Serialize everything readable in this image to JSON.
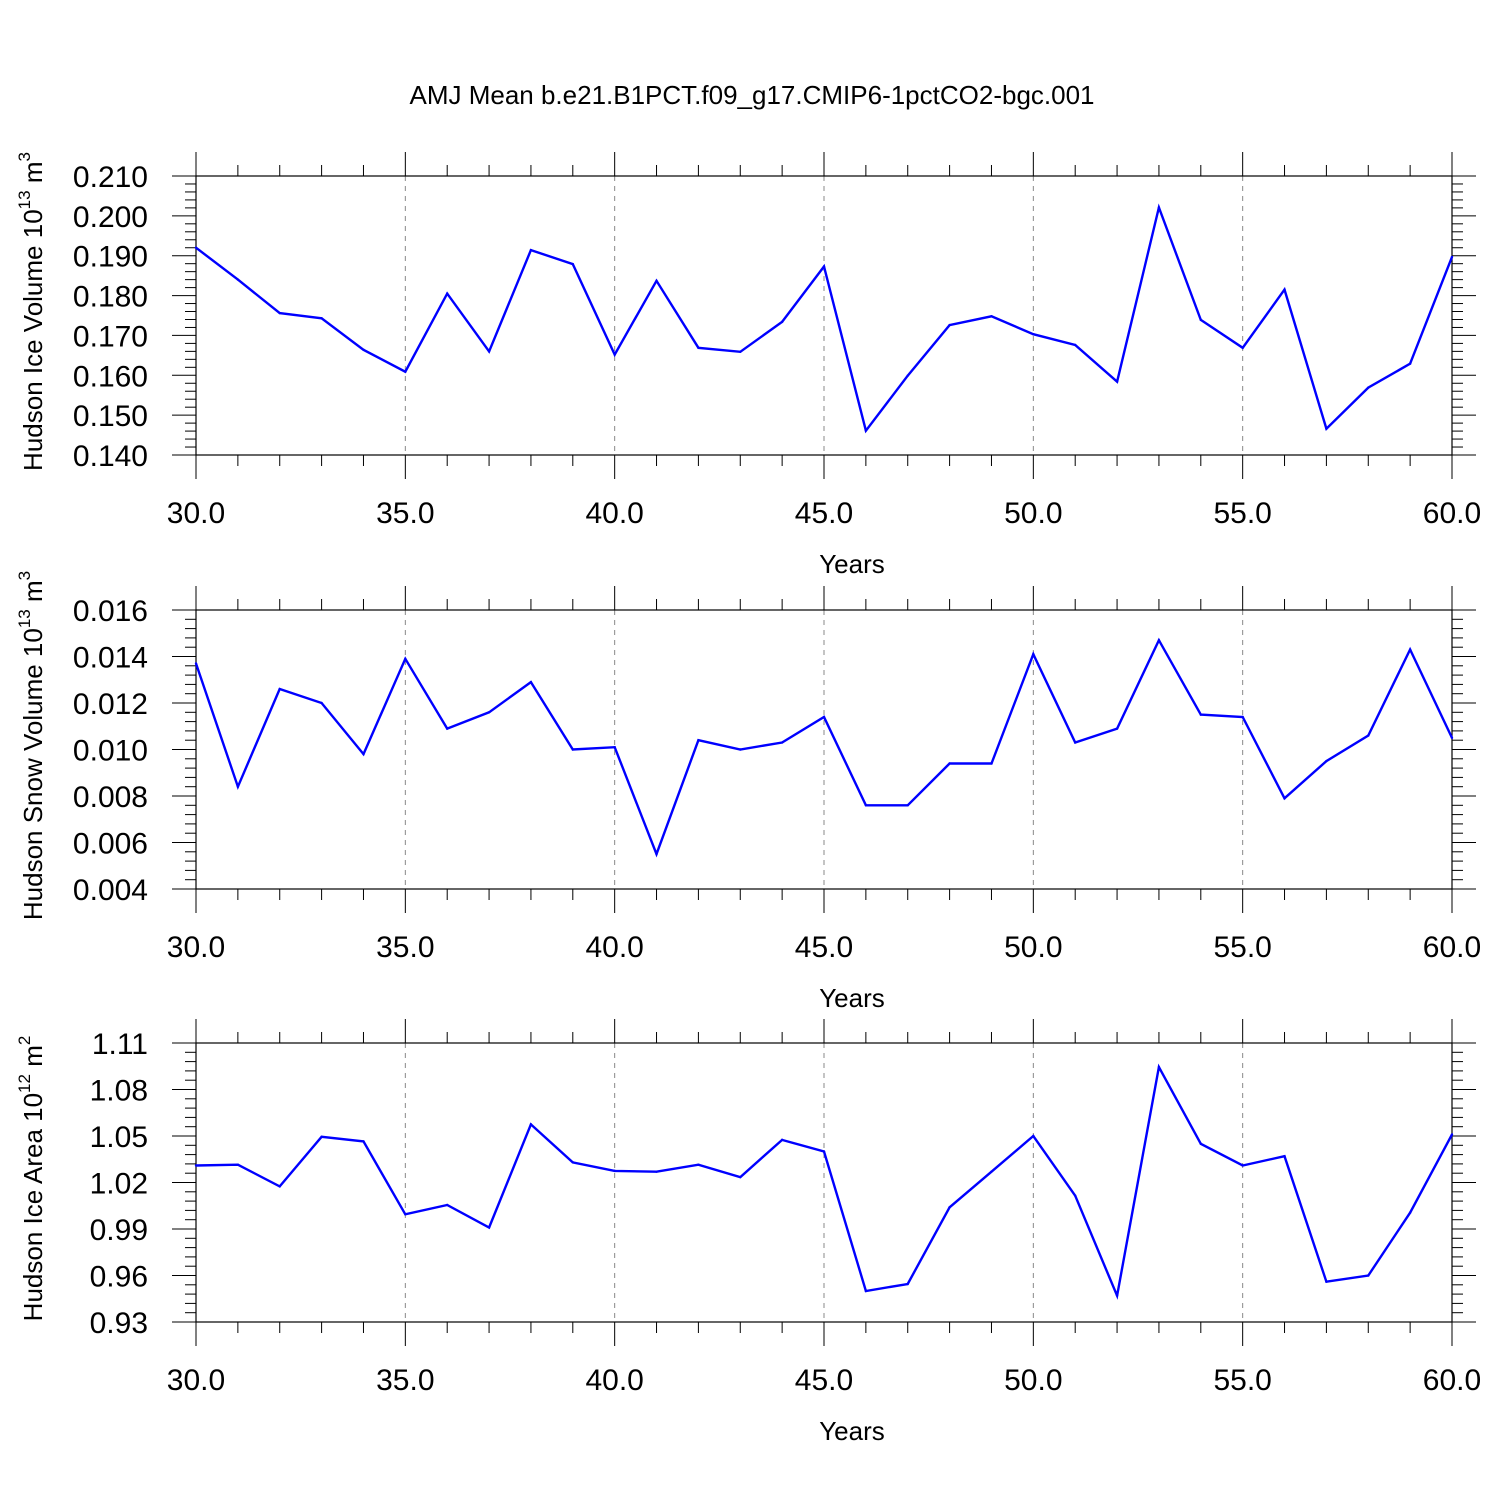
{
  "title": "AMJ Mean b.e21.B1PCT.f09_g17.CMIP6-1pctCO2-bgc.001",
  "colors": {
    "line": "#0000ff",
    "axis": "#000000",
    "grid": "#888888",
    "background": "#ffffff"
  },
  "chart_data": [
    {
      "type": "line",
      "ylabel": "Hudson Ice Volume 10",
      "ylabel_exponent": "13",
      "ylabel_unit": " m",
      "ylabel_unit_exponent": "3",
      "xlabel": "Years",
      "xlim": [
        30,
        60
      ],
      "ylim": [
        0.14,
        0.21
      ],
      "x_ticks": [
        30,
        35,
        40,
        45,
        50,
        55,
        60
      ],
      "x_tick_labels": [
        "30.0",
        "35.0",
        "40.0",
        "45.0",
        "50.0",
        "55.0",
        "60.0"
      ],
      "y_ticks": [
        0.14,
        0.15,
        0.16,
        0.17,
        0.18,
        0.19,
        0.2,
        0.21
      ],
      "y_tick_labels": [
        "0.140",
        "0.150",
        "0.160",
        "0.170",
        "0.180",
        "0.190",
        "0.200",
        "0.210"
      ],
      "grid": "x-dashed",
      "x": [
        30,
        31,
        32,
        33,
        34,
        35,
        36,
        37,
        38,
        39,
        40,
        41,
        42,
        43,
        44,
        45,
        46,
        47,
        48,
        49,
        50,
        51,
        52,
        53,
        54,
        55,
        56,
        57,
        58,
        59,
        60
      ],
      "y": [
        0.192,
        0.184,
        0.1756,
        0.1743,
        0.1664,
        0.1609,
        0.1805,
        0.166,
        0.1914,
        0.1879,
        0.1652,
        0.1837,
        0.1669,
        0.1659,
        0.1734,
        0.1873,
        0.1461,
        0.1599,
        0.1726,
        0.1748,
        0.1703,
        0.1676,
        0.1584,
        0.2021,
        0.1739,
        0.1669,
        0.1815,
        0.1466,
        0.1569,
        0.1629,
        0.1897
      ]
    },
    {
      "type": "line",
      "ylabel": "Hudson Snow Volume 10",
      "ylabel_exponent": "13",
      "ylabel_unit": " m",
      "ylabel_unit_exponent": "3",
      "xlabel": "Years",
      "xlim": [
        30,
        60
      ],
      "ylim": [
        0.004,
        0.016
      ],
      "x_ticks": [
        30,
        35,
        40,
        45,
        50,
        55,
        60
      ],
      "x_tick_labels": [
        "30.0",
        "35.0",
        "40.0",
        "45.0",
        "50.0",
        "55.0",
        "60.0"
      ],
      "y_ticks": [
        0.004,
        0.006,
        0.008,
        0.01,
        0.012,
        0.014,
        0.016
      ],
      "y_tick_labels": [
        "0.004",
        "0.006",
        "0.008",
        "0.010",
        "0.012",
        "0.014",
        "0.016"
      ],
      "grid": "x-dashed",
      "x": [
        30,
        31,
        32,
        33,
        34,
        35,
        36,
        37,
        38,
        39,
        40,
        41,
        42,
        43,
        44,
        45,
        46,
        47,
        48,
        49,
        50,
        51,
        52,
        53,
        54,
        55,
        56,
        57,
        58,
        59,
        60
      ],
      "y": [
        0.0137,
        0.0084,
        0.0126,
        0.012,
        0.0098,
        0.0139,
        0.0109,
        0.0116,
        0.0129,
        0.01,
        0.0101,
        0.0055,
        0.0104,
        0.01,
        0.0103,
        0.0114,
        0.0076,
        0.0076,
        0.0094,
        0.0094,
        0.0141,
        0.0103,
        0.0109,
        0.0147,
        0.0115,
        0.0114,
        0.0079,
        0.0095,
        0.0106,
        0.0143,
        0.0105
      ]
    },
    {
      "type": "line",
      "ylabel": "Hudson Ice Area 10",
      "ylabel_exponent": "12",
      "ylabel_unit": " m",
      "ylabel_unit_exponent": "2",
      "xlabel": "Years",
      "xlim": [
        30,
        60
      ],
      "ylim": [
        0.93,
        1.11
      ],
      "x_ticks": [
        30,
        35,
        40,
        45,
        50,
        55,
        60
      ],
      "x_tick_labels": [
        "30.0",
        "35.0",
        "40.0",
        "45.0",
        "50.0",
        "55.0",
        "60.0"
      ],
      "y_ticks": [
        0.93,
        0.96,
        0.99,
        1.02,
        1.05,
        1.08,
        1.11
      ],
      "y_tick_labels": [
        "0.93",
        "0.96",
        "0.99",
        "1.02",
        "1.05",
        "1.08",
        "1.11"
      ],
      "grid": "x-dashed",
      "x": [
        30,
        31,
        32,
        33,
        34,
        35,
        36,
        37,
        38,
        39,
        40,
        41,
        42,
        43,
        44,
        45,
        46,
        47,
        48,
        49,
        50,
        51,
        52,
        53,
        54,
        55,
        56,
        57,
        58,
        59,
        60
      ],
      "y": [
        1.031,
        1.0315,
        1.0175,
        1.0495,
        1.0465,
        0.9995,
        1.0055,
        0.991,
        1.0575,
        1.033,
        1.0275,
        1.027,
        1.0315,
        1.0235,
        1.0475,
        1.04,
        0.95,
        0.9545,
        1.004,
        1.027,
        1.05,
        1.0115,
        0.947,
        1.0945,
        1.045,
        1.031,
        1.037,
        0.956,
        0.96,
        1.0005,
        1.051
      ]
    }
  ]
}
